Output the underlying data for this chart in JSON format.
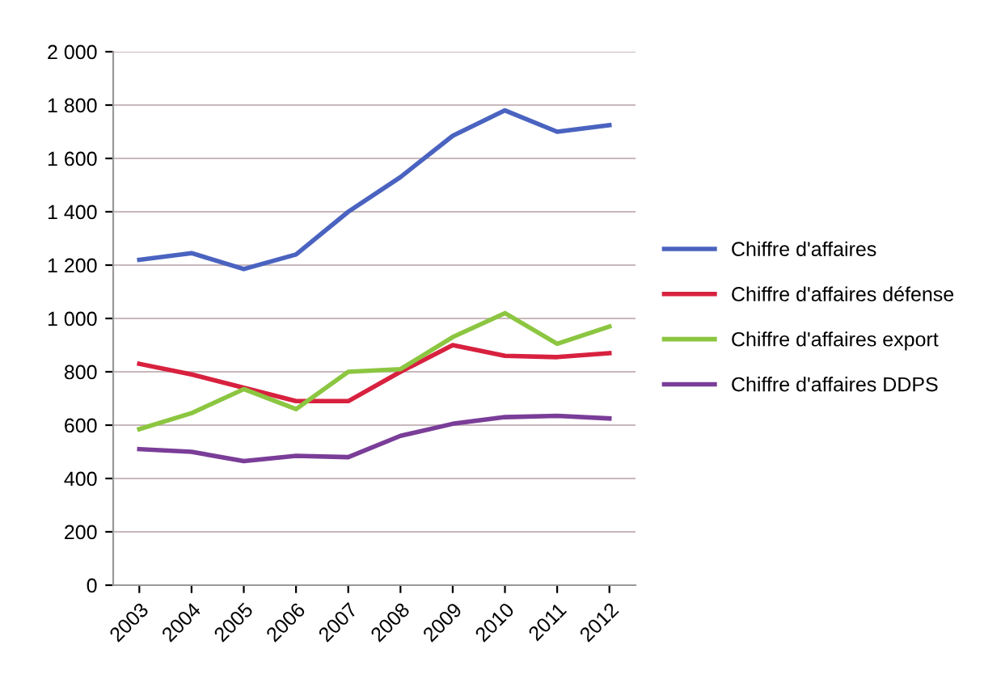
{
  "chart_data": {
    "type": "line",
    "categories": [
      "2003",
      "2004",
      "2005",
      "2006",
      "2007",
      "2008",
      "2009",
      "2010",
      "2011",
      "2012"
    ],
    "series": [
      {
        "name": "Chiffre d'affaires",
        "color": "#4a63c0",
        "values": [
          1220,
          1245,
          1185,
          1240,
          1400,
          1530,
          1685,
          1780,
          1700,
          1725
        ]
      },
      {
        "name": "Chiffre d'affaires défense",
        "color": "#d8213f",
        "values": [
          830,
          790,
          740,
          690,
          690,
          800,
          900,
          860,
          855,
          870
        ]
      },
      {
        "name": "Chiffre d'affaires export",
        "color": "#8cc641",
        "values": [
          585,
          645,
          735,
          660,
          800,
          810,
          930,
          1020,
          905,
          970
        ]
      },
      {
        "name": "Chiffre d'affaires DDPS",
        "color": "#7a3d98",
        "values": [
          510,
          500,
          465,
          485,
          480,
          560,
          605,
          630,
          635,
          625
        ]
      }
    ],
    "ylim": [
      0,
      2000
    ],
    "yticks": [
      0,
      200,
      400,
      600,
      800,
      {
        "value": 1000,
        "label": "1 000"
      },
      {
        "value": 1200,
        "label": "1 200"
      },
      {
        "value": 1400,
        "label": "1 400"
      },
      {
        "value": 1600,
        "label": "1 600"
      },
      {
        "value": 1800,
        "label": "1 800"
      },
      {
        "value": 2000,
        "label": "2 000"
      }
    ],
    "grid": "y",
    "legend": "right",
    "marker": "none",
    "line_style": "solid"
  }
}
